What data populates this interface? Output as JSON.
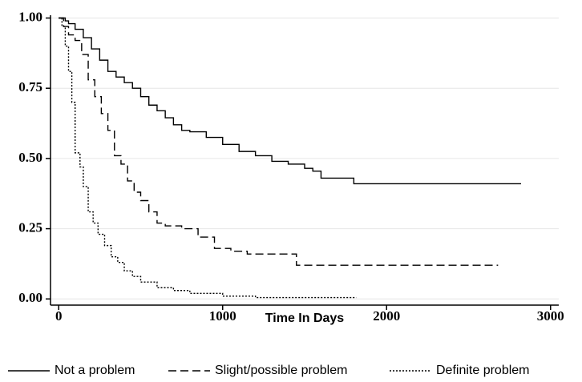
{
  "chart_data": {
    "type": "step",
    "x_label": "Time In Days",
    "xlim": [
      -50,
      3050
    ],
    "xticks": [
      0,
      1000,
      2000,
      3000
    ],
    "ylim": [
      -0.022,
      1.01
    ],
    "yticks": [
      {
        "value": 0,
        "label": "0.00"
      },
      {
        "value": 0.25,
        "label": "0.25"
      },
      {
        "value": 0.5,
        "label": "0.50"
      },
      {
        "value": 0.75,
        "label": "0.75"
      },
      {
        "value": 1,
        "label": "1.00"
      }
    ],
    "grid": true,
    "series": [
      {
        "name": "Not a problem",
        "color": "#000000",
        "dash": "solid",
        "x": [
          0,
          40,
          60,
          100,
          150,
          200,
          250,
          300,
          350,
          400,
          450,
          500,
          550,
          600,
          650,
          700,
          750,
          800,
          900,
          1000,
          1100,
          1200,
          1300,
          1400,
          1500,
          1550,
          1600,
          1800,
          2820
        ],
        "values": [
          1,
          0.99,
          0.98,
          0.96,
          0.93,
          0.89,
          0.85,
          0.81,
          0.79,
          0.77,
          0.75,
          0.72,
          0.69,
          0.67,
          0.645,
          0.62,
          0.6,
          0.595,
          0.575,
          0.55,
          0.525,
          0.51,
          0.49,
          0.48,
          0.465,
          0.455,
          0.43,
          0.41,
          0.41
        ]
      },
      {
        "name": "Slight/possible problem",
        "color": "#000000",
        "dash": "dashed",
        "x": [
          0,
          30,
          60,
          100,
          140,
          180,
          220,
          260,
          300,
          340,
          380,
          420,
          460,
          500,
          550,
          600,
          650,
          750,
          850,
          950,
          1050,
          1150,
          1450,
          2680
        ],
        "values": [
          1,
          0.97,
          0.94,
          0.92,
          0.87,
          0.78,
          0.72,
          0.66,
          0.6,
          0.51,
          0.48,
          0.42,
          0.38,
          0.35,
          0.31,
          0.27,
          0.26,
          0.25,
          0.22,
          0.18,
          0.17,
          0.16,
          0.12,
          0.12
        ]
      },
      {
        "name": "Definite problem",
        "color": "#000000",
        "dash": "dotted",
        "x": [
          0,
          20,
          40,
          60,
          80,
          100,
          130,
          150,
          180,
          210,
          240,
          280,
          320,
          360,
          400,
          450,
          500,
          600,
          700,
          800,
          1000,
          1200,
          1815
        ],
        "values": [
          1,
          0.97,
          0.9,
          0.81,
          0.7,
          0.52,
          0.47,
          0.4,
          0.31,
          0.27,
          0.23,
          0.19,
          0.15,
          0.13,
          0.1,
          0.08,
          0.06,
          0.04,
          0.03,
          0.02,
          0.01,
          0.005,
          0.005
        ]
      }
    ]
  }
}
